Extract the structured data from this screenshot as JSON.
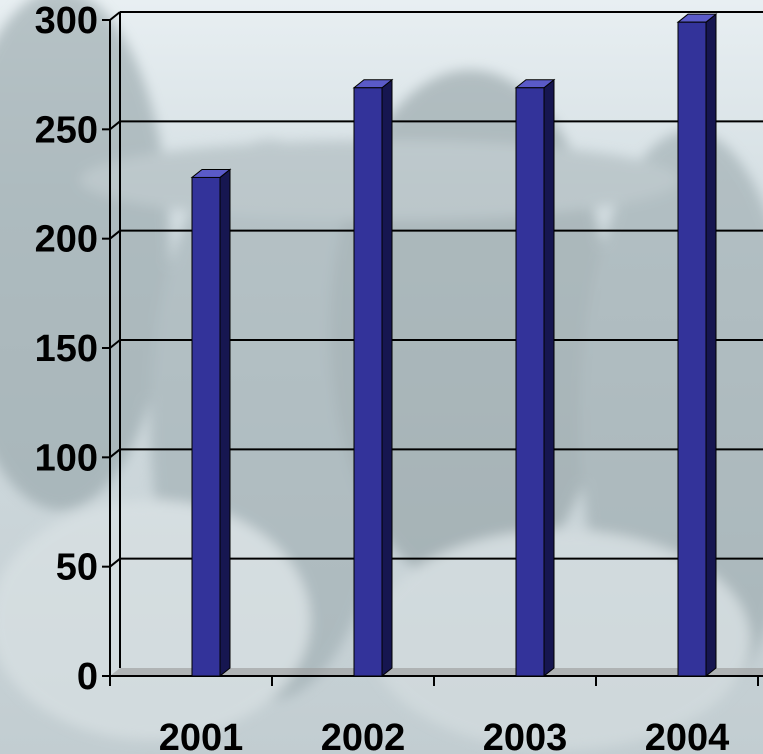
{
  "chart_data": {
    "type": "bar",
    "categories": [
      "2001",
      "2002",
      "2003",
      "2004"
    ],
    "values": [
      228,
      269,
      269,
      299
    ],
    "title": "",
    "xlabel": "",
    "ylabel": "",
    "ylim": [
      0,
      300
    ],
    "yticks": [
      "0",
      "50",
      "100",
      "150",
      "200",
      "250",
      "300"
    ],
    "grid": true,
    "legend": "none",
    "style": "3d-column",
    "colors": {
      "bar_front": "#33339a",
      "bar_side": "#161650",
      "bar_top": "#5a5ac8",
      "gridline": "#000000",
      "background": "snowy-forest-photo"
    }
  }
}
